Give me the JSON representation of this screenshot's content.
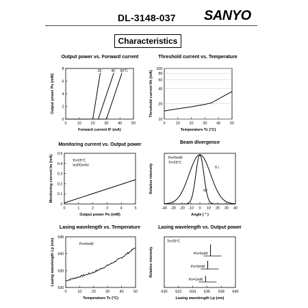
{
  "header": {
    "part_number": "DL-3148-037",
    "brand": "SANYO",
    "section_title": "Characteristics"
  },
  "chart_data": [
    {
      "id": "power",
      "type": "line",
      "title": "Output power vs. Forward current",
      "xlabel": "Forward current  IF  (mA)",
      "ylabel": "Output power  Po (mW)",
      "xlim": [
        0,
        50
      ],
      "ylim": [
        0,
        8
      ],
      "xticks": [
        "0",
        "10",
        "20",
        "30",
        "40",
        "50"
      ],
      "yticks": [
        "0",
        "2",
        "4",
        "6",
        "8"
      ],
      "series": [
        {
          "name": "25",
          "x": [
            0,
            20,
            25.5
          ],
          "y": [
            0,
            0,
            7.3
          ]
        },
        {
          "name": "40",
          "x": [
            0,
            24,
            35.5
          ],
          "y": [
            0,
            0,
            7.3
          ]
        },
        {
          "name": "60°C",
          "x": [
            0,
            30,
            41.5
          ],
          "y": [
            0,
            0,
            7.3
          ]
        }
      ]
    },
    {
      "id": "threshold",
      "type": "line",
      "title": "Threshold current vs. Temperature",
      "xlabel": "Temperature  Tc (°C)",
      "ylabel": "Threshold current  Ith (mA)",
      "xlim": [
        0,
        50
      ],
      "ylim": [
        10,
        100
      ],
      "yscale": "log",
      "xticks": [
        "0",
        "10",
        "20",
        "30",
        "40",
        "50"
      ],
      "yticks": [
        "10",
        "20",
        "40",
        "60",
        "80",
        "100"
      ],
      "series": [
        {
          "x": [
            0,
            10,
            20,
            30,
            35,
            40,
            50
          ],
          "y": [
            14.5,
            16,
            17.5,
            19.5,
            21,
            25,
            35
          ]
        }
      ]
    },
    {
      "id": "monitor",
      "type": "line",
      "title": "Monitoring current vs.  Output power",
      "xlabel": "Output power  Po (mW)",
      "ylabel": "Monitoring current  Im (mA)",
      "xlim": [
        0,
        5
      ],
      "ylim": [
        0,
        0.5
      ],
      "xticks": [
        "0",
        "1",
        "2",
        "3",
        "4",
        "5"
      ],
      "yticks": [
        "0",
        "0.1",
        "0.2",
        "0.3",
        "0.4",
        "0.5"
      ],
      "annotation": [
        "Tc=25°C",
        "Vr(PD)=5V"
      ],
      "series": [
        {
          "x": [
            0,
            5
          ],
          "y": [
            0.01,
            0.24
          ]
        }
      ]
    },
    {
      "id": "divergence",
      "type": "line",
      "title": "Beam divergence",
      "xlabel": "Angle   ( ° )",
      "ylabel": "Relative intensity",
      "xlim": [
        -40,
        40
      ],
      "xticks": [
        "-40",
        "-30",
        "-20",
        "-10",
        "0",
        "10",
        "20",
        "30",
        "40"
      ],
      "annotation": [
        "Po=5mW",
        "Tc=25°C"
      ],
      "series": [
        {
          "name": "θ//",
          "sigma": 4.5
        },
        {
          "name": "θ⊥",
          "sigma": 12
        }
      ]
    },
    {
      "id": "wl_temp",
      "type": "line",
      "title": "Lasing wavelength vs. Temperature",
      "xlabel": "Temperature  Tc (°C)",
      "ylabel": "Lasing wavelength  Lp (nm)",
      "xlim": [
        0,
        50
      ],
      "ylim": [
        630,
        645
      ],
      "xticks": [
        "0",
        "10",
        "20",
        "30",
        "40",
        "50"
      ],
      "yticks": [
        "630",
        "635",
        "640",
        "645"
      ],
      "annotation": [
        "Po=5mW"
      ],
      "series": [
        {
          "x": [
            0,
            10,
            20,
            30,
            40,
            50
          ],
          "y": [
            632,
            633.2,
            634.5,
            636.5,
            638.8,
            641.8
          ]
        }
      ]
    },
    {
      "id": "wl_power",
      "type": "spectrum",
      "title": "Lasing wavelength vs. Output power",
      "xlabel": "Lasing wavelength  Lp (nm)",
      "ylabel": "Relative intensity",
      "xlim": [
        630,
        640
      ],
      "xticks": [
        "630",
        "632",
        "634",
        "636",
        "638",
        "640"
      ],
      "annotation": [
        "Tc=25°C"
      ],
      "series": [
        {
          "name": "Po=5mW",
          "peak": 636.5,
          "level": 3
        },
        {
          "name": "Po=3mW",
          "peak": 636.1,
          "level": 2
        },
        {
          "name": "Po=1mW",
          "peak": 635.8,
          "level": 1
        }
      ]
    }
  ]
}
